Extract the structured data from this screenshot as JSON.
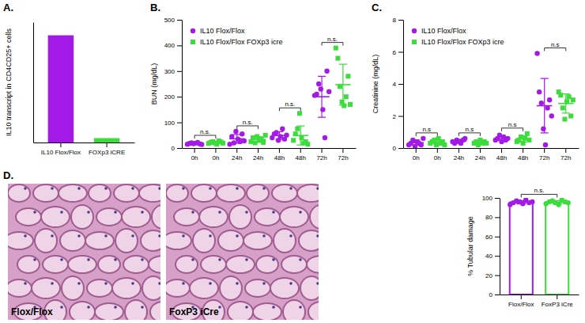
{
  "chart_data": [
    {
      "panel": "A.",
      "type": "bar",
      "ylabel": "IL10 transcript in CD4CD25+ cells",
      "categories": [
        "IL10 Flox/Flox",
        "FOXp3 iCRE"
      ],
      "values": [
        0.98,
        0.04
      ],
      "colors": [
        "#a31ae6",
        "#3cdc3c"
      ],
      "ylim": [
        0,
        1.1
      ],
      "tick_labels": "x"
    },
    {
      "panel": "B.",
      "type": "dot",
      "ylabel": "BUN (mg/dL)",
      "categories": [
        "0h",
        "0h",
        "24h",
        "24h",
        "48h",
        "48h",
        "72h",
        "72h"
      ],
      "ylim": [
        0,
        500
      ],
      "yticks": [
        0,
        100,
        200,
        300,
        400,
        500
      ],
      "legend": "upper left",
      "series": [
        {
          "name": "IL10 Flox/Flox",
          "color": "#a31ae6",
          "marker": "circle",
          "values": [
            [
              15,
              18,
              20,
              17,
              19,
              22,
              16,
              14
            ],
            null,
            [
              15,
              45,
              20,
              65,
              35,
              25,
              55,
              28
            ],
            null,
            [
              40,
              55,
              60,
              30,
              45,
              75,
              35,
              50
            ],
            null,
            [
              205,
              210,
              250,
              230,
              150,
              40,
              300,
              220
            ],
            null
          ],
          "mean": [
            17.6,
            null,
            36,
            null,
            48.8,
            null,
            200,
            null
          ],
          "sd": [
            2.7,
            null,
            17,
            null,
            15,
            null,
            80,
            null
          ]
        },
        {
          "name": "IL10 Flox/Flox FOXp3 icre",
          "color": "#3cdc3c",
          "marker": "square",
          "values": [
            null,
            [
              18,
              22,
              25,
              20,
              15,
              28,
              24,
              19
            ],
            null,
            [
              25,
              40,
              20,
              45,
              30,
              35,
              22,
              50
            ],
            null,
            [
              30,
              55,
              75,
              135,
              40,
              20,
              25,
              15
            ],
            null,
            [
              390,
              350,
              240,
              180,
              165,
              200,
              280,
              170
            ]
          ],
          "mean": [
            null,
            21.4,
            null,
            33.4,
            null,
            49,
            null,
            247
          ],
          "sd": [
            null,
            4,
            null,
            11,
            null,
            37,
            null,
            80
          ]
        }
      ],
      "comparisons": [
        {
          "label": "n.s.",
          "groups": [
            0,
            1
          ]
        },
        {
          "label": "n.s.",
          "groups": [
            2,
            3
          ]
        },
        {
          "label": "n.s.",
          "groups": [
            4,
            5
          ]
        },
        {
          "label": "n.s.",
          "groups": [
            6,
            7
          ]
        }
      ]
    },
    {
      "panel": "C.",
      "type": "dot",
      "ylabel": "Creatinine (mg/dL)",
      "categories": [
        "0h",
        "0h",
        "24h",
        "24h",
        "48h",
        "48h",
        "72h",
        "72h"
      ],
      "ylim": [
        0,
        8
      ],
      "yticks": [
        0,
        2,
        4,
        6,
        8
      ],
      "legend": "upper left",
      "series": [
        {
          "name": "IL10 Flox/Flox",
          "color": "#a31ae6",
          "marker": "circle",
          "values": [
            [
              0.2,
              0.3,
              0.5,
              0.1,
              0.4,
              0.3,
              0.2,
              0.6
            ],
            null,
            [
              0.4,
              0.3,
              0.5,
              0.4,
              0.3,
              0.5,
              0.6
            ],
            null,
            [
              0.5,
              0.6,
              0.8,
              0.4,
              0.7,
              0.5,
              0.6
            ],
            null,
            [
              5.9,
              3.5,
              2.8,
              1.2,
              0.2,
              2.5,
              3.0,
              2.0
            ],
            null
          ],
          "mean": [
            0.33,
            null,
            0.43,
            null,
            0.59,
            null,
            2.64,
            null
          ],
          "sd": [
            0.17,
            null,
            0.11,
            null,
            0.13,
            null,
            1.7,
            null
          ]
        },
        {
          "name": "IL10 Flox/Flox FOXp3 icre",
          "color": "#3cdc3c",
          "marker": "square",
          "values": [
            null,
            [
              0.3,
              0.4,
              0.5,
              0.2,
              0.6,
              0.3,
              0.4,
              0.2
            ],
            null,
            [
              0.3,
              0.4,
              0.2,
              0.5,
              0.3,
              0.4,
              0.3
            ],
            null,
            [
              0.4,
              0.5,
              0.7,
              0.3,
              0.6,
              0.9,
              0.5
            ],
            null,
            [
              3.5,
              3.3,
              2.5,
              1.8,
              2.9,
              3.2,
              2.0,
              3.0
            ]
          ],
          "mean": [
            null,
            0.36,
            null,
            0.34,
            null,
            0.56,
            null,
            2.78
          ],
          "sd": [
            null,
            0.14,
            null,
            0.1,
            null,
            0.2,
            null,
            0.6
          ]
        }
      ],
      "comparisons": [
        {
          "label": "n.s",
          "groups": [
            0,
            1
          ]
        },
        {
          "label": "n.s",
          "groups": [
            2,
            3
          ]
        },
        {
          "label": "n.s",
          "groups": [
            4,
            5
          ]
        },
        {
          "label": "n.s",
          "groups": [
            6,
            7
          ]
        }
      ]
    },
    {
      "panel": "D.",
      "type": "bar",
      "images": [
        {
          "label": "Flox/Flox"
        },
        {
          "label": "FoxP3 iCre"
        }
      ],
      "ylabel": "% Tubular damage",
      "categories": [
        "Flox/Flox",
        "FoxP3 iCre"
      ],
      "values": [
        95.5,
        95.5
      ],
      "error": [
        1.6,
        1.6
      ],
      "points": [
        [
          93,
          95,
          97,
          96,
          94,
          98,
          95,
          96
        ],
        [
          94,
          96,
          97,
          95,
          93,
          98,
          96,
          95
        ]
      ],
      "colors": [
        "#a31ae6",
        "#3cdc3c"
      ],
      "ylim": [
        0,
        100
      ],
      "yticks": [
        0,
        20,
        40,
        60,
        80,
        100
      ],
      "comparisons": [
        {
          "label": "n.s.",
          "groups": [
            0,
            1
          ]
        }
      ]
    }
  ]
}
